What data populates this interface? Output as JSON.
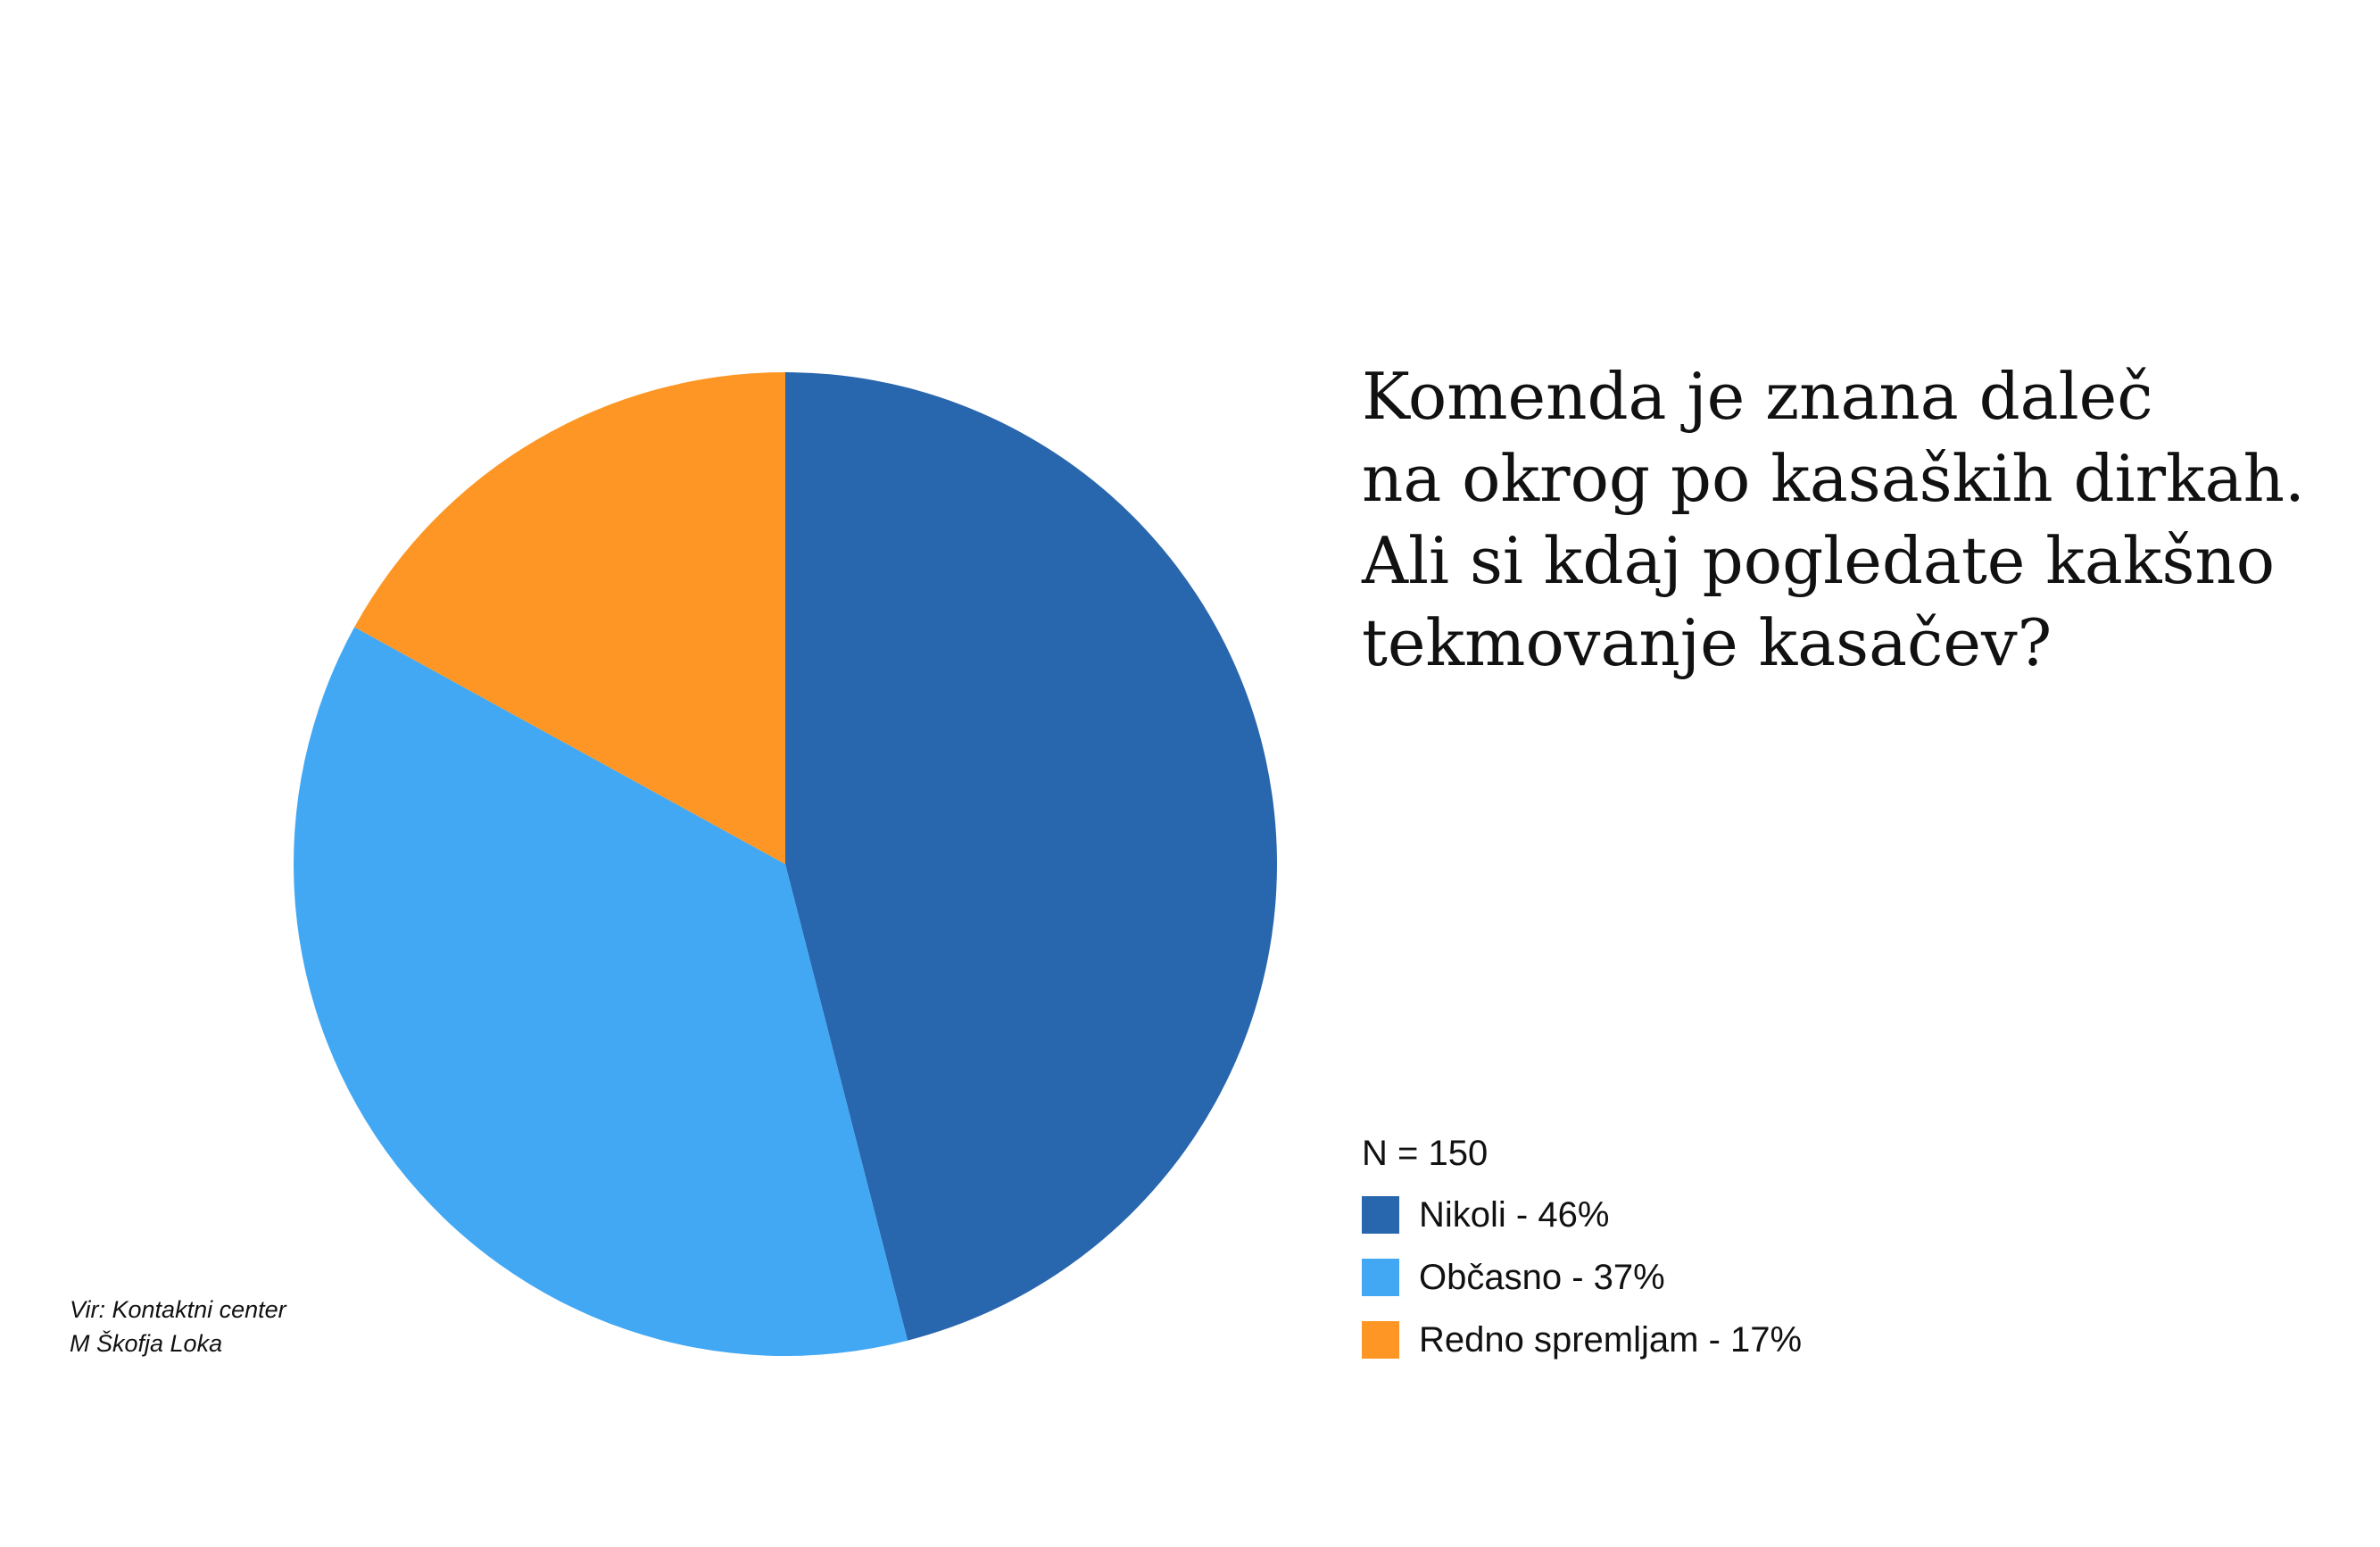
{
  "chart_data": {
    "type": "pie",
    "title_lines": [
      "Komenda je znana daleč",
      "na okrog po kasaških dirkah.",
      "Ali si kdaj pogledate kakšno",
      "tekmovanje kasačev?"
    ],
    "n_label": "N = 150",
    "slices": [
      {
        "name": "Nikoli",
        "value": 46,
        "label": "Nikoli - 46%",
        "color": "#2866ad"
      },
      {
        "name": "Občasno",
        "value": 37,
        "label": "Občasno - 37%",
        "color": "#42a8f3"
      },
      {
        "name": "Redno spremljam",
        "value": 17,
        "label": "Redno spremljam - 17%",
        "color": "#fd9624"
      }
    ],
    "legend_placement": "bottom-right",
    "start": "top",
    "direction": "clockwise"
  },
  "source": {
    "line1": "Vir: Kontaktni center",
    "line2": "M Škofja Loka"
  }
}
